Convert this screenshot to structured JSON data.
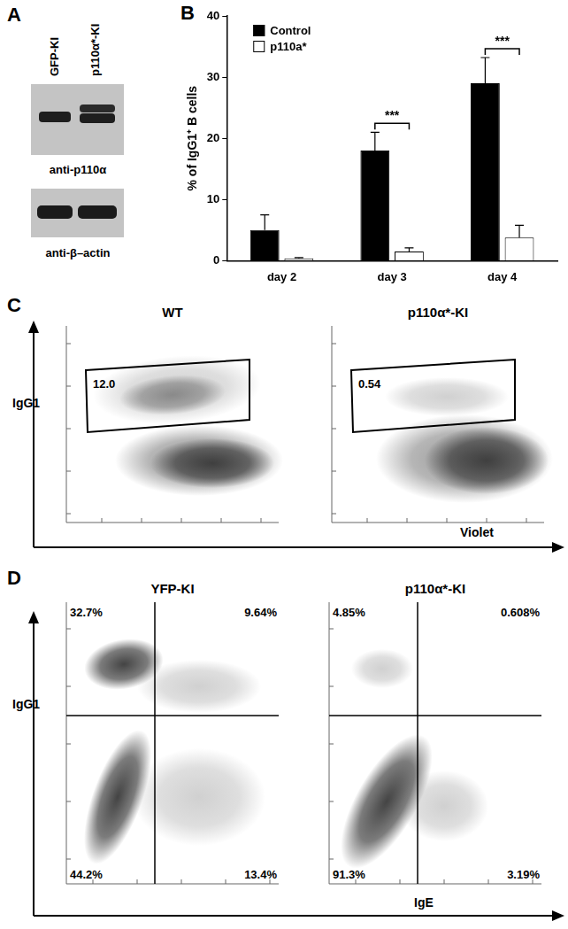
{
  "panel_labels": [
    "A",
    "B",
    "C",
    "D"
  ],
  "chart_data": {
    "type": "bar",
    "y_label": "% of IgG1⁺ B cells",
    "categories": [
      "day 2",
      "day 3",
      "day 4"
    ],
    "series": [
      {
        "name": "Control",
        "color": "#000000",
        "values": [
          5,
          18,
          29
        ],
        "errors": [
          2.5,
          3,
          4.2
        ]
      },
      {
        "name": "p110a*",
        "color": "#ffffff",
        "values": [
          0.4,
          1.5,
          3.8
        ],
        "errors": [
          0.1,
          0.6,
          2
        ]
      }
    ],
    "ylim": [
      0,
      40
    ],
    "yticks": [
      0,
      10,
      20,
      30,
      40
    ],
    "grid": false,
    "legend": "upper left",
    "annotations": [
      {
        "category": "day 3",
        "text": "***"
      },
      {
        "category": "day 4",
        "text": "***"
      }
    ]
  },
  "panels": {
    "A": {
      "lanes": [
        "GFP-KI",
        "p110α*-KI"
      ],
      "blots": [
        "anti-p110α",
        "anti-β–actin"
      ]
    },
    "C": {
      "x_label": "Violet",
      "y_label": "IgG1",
      "plots": [
        {
          "title": "WT",
          "gate_value": "12.0"
        },
        {
          "title": "p110α*-KI",
          "gate_value": "0.54"
        }
      ]
    },
    "D": {
      "x_label": "IgE",
      "y_label": "IgG1",
      "plots": [
        {
          "title": "YFP-KI",
          "quadrants": {
            "top_left": "32.7%",
            "top_right": "9.64%",
            "bottom_left": "44.2%",
            "bottom_right": "13.4%"
          }
        },
        {
          "title": "p110α*-KI",
          "quadrants": {
            "top_left": "4.85%",
            "top_right": "0.608%",
            "bottom_left": "91.3%",
            "bottom_right": "3.19%"
          }
        }
      ]
    }
  }
}
